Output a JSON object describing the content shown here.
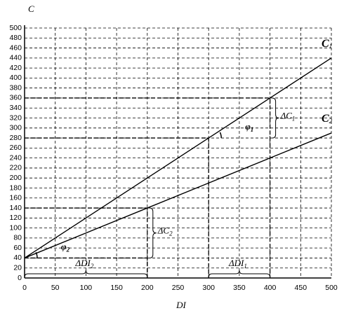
{
  "chart_data": {
    "type": "line",
    "ylabel": "C",
    "xlabel": "DI",
    "x": [
      0,
      200,
      300,
      400,
      500
    ],
    "series": [
      {
        "name": "C",
        "sub": "1",
        "color": "#000000",
        "values": [
          40,
          200,
          280,
          360,
          440
        ]
      },
      {
        "name": "C",
        "sub": "2",
        "color": "#000000",
        "values": [
          40,
          140,
          190,
          240,
          290
        ]
      }
    ],
    "xlim": [
      0,
      500
    ],
    "xticks": [
      0,
      50,
      100,
      150,
      200,
      250,
      300,
      350,
      400,
      450,
      500
    ],
    "ylim": [
      0,
      500
    ],
    "yticks": [
      0,
      20,
      40,
      60,
      80,
      100,
      120,
      140,
      160,
      180,
      200,
      220,
      240,
      260,
      280,
      300,
      320,
      340,
      360,
      380,
      400,
      420,
      440,
      460,
      480,
      500
    ],
    "grid": true,
    "guides": [
      {
        "x": 300,
        "y": 280
      },
      {
        "x": 400,
        "y": 360
      },
      {
        "x": 200,
        "y": 140
      },
      {
        "x": 200,
        "y": 40
      }
    ],
    "braces": [
      {
        "label": "ΔC",
        "sub": "1",
        "axis": "y",
        "from": 280,
        "to": 360,
        "at": 400
      },
      {
        "label": "ΔC",
        "sub": "2",
        "axis": "y",
        "from": 40,
        "to": 140,
        "at": 200
      },
      {
        "label": "ΔDI",
        "sub": "1",
        "axis": "x",
        "from": 300,
        "to": 400,
        "at": 0
      },
      {
        "label": "ΔDI",
        "sub": "2",
        "axis": "x",
        "from": 0,
        "to": 200,
        "at": 0
      }
    ],
    "angles": [
      {
        "label": "φ",
        "sub": "1",
        "x": 300,
        "y": 280
      },
      {
        "label": "φ",
        "sub": "2",
        "x": 0,
        "y": 40
      }
    ]
  }
}
